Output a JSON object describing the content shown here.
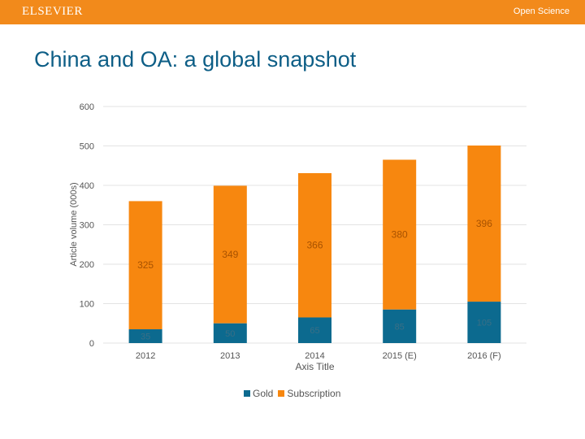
{
  "header": {
    "brand": "ELSEVIER",
    "tag": "Open Science"
  },
  "slide": {
    "title": "China and OA: a global snapshot"
  },
  "colors": {
    "bar_top": "#f28a1b",
    "gold": "#0c6a8f",
    "subscription": "#f7870f",
    "grid": "#e3e3e3",
    "text": "#555555"
  },
  "chart_data": {
    "type": "bar",
    "stacked": true,
    "categories": [
      "2012",
      "2013",
      "2014",
      "2015 (E)",
      "2016 (F)"
    ],
    "series": [
      {
        "name": "Gold",
        "values": [
          35,
          50,
          65,
          85,
          105
        ],
        "labels": [
          "35",
          "50",
          "65",
          "85",
          "105"
        ]
      },
      {
        "name": "Subscription",
        "values": [
          325,
          349,
          366,
          380,
          396
        ],
        "labels": [
          "325",
          "349",
          "366",
          "380",
          "396"
        ]
      }
    ],
    "ylabel": "Article volume (000s)",
    "xlabel": "Axis Title",
    "ylim": [
      0,
      600
    ],
    "yticks": [
      0,
      100,
      200,
      300,
      400,
      500,
      600
    ],
    "legend": "bottom"
  }
}
